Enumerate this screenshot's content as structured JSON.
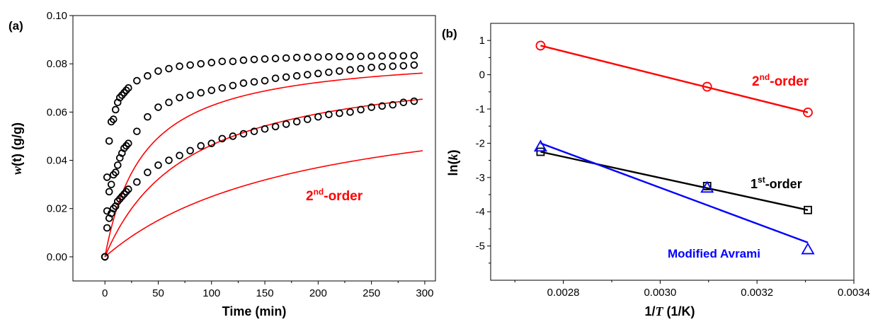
{
  "chart_data": [
    {
      "type": "scatter",
      "panel_label": "(a)",
      "xlabel": "Time (min)",
      "ylabel_italic": "w",
      "ylabel_rest": "(t) (g/g)",
      "xlim": [
        -30,
        310
      ],
      "ylim": [
        -0.01,
        0.1
      ],
      "xticks": [
        0,
        50,
        100,
        150,
        200,
        250,
        300
      ],
      "xtick_labels": [
        "0",
        "50",
        "100",
        "150",
        "200",
        "250",
        "300"
      ],
      "yticks": [
        0.0,
        0.02,
        0.04,
        0.06,
        0.08,
        0.1
      ],
      "ytick_labels": [
        "0.00",
        "0.02",
        "0.04",
        "0.06",
        "0.08",
        "0.10"
      ],
      "annotation": {
        "base": "2",
        "sup": "nd",
        "rest": "-order",
        "color": "#ff0000"
      },
      "series": [
        {
          "marker": "circle",
          "color": "#000000",
          "x": [
            0,
            2,
            4,
            6,
            8,
            10,
            12,
            14,
            16,
            18,
            20,
            22,
            30,
            40,
            50,
            60,
            70,
            80,
            90,
            100,
            110,
            120,
            130,
            140,
            150,
            160,
            170,
            180,
            190,
            200,
            210,
            220,
            230,
            240,
            250,
            260,
            270,
            280,
            290
          ],
          "y": [
            0,
            0.033,
            0.048,
            0.056,
            0.057,
            0.061,
            0.064,
            0.066,
            0.067,
            0.068,
            0.069,
            0.07,
            0.073,
            0.075,
            0.077,
            0.078,
            0.079,
            0.0795,
            0.08,
            0.0805,
            0.081,
            0.081,
            0.0815,
            0.0818,
            0.082,
            0.0822,
            0.0824,
            0.0826,
            0.0827,
            0.0828,
            0.0829,
            0.083,
            0.083,
            0.0831,
            0.0832,
            0.0832,
            0.0833,
            0.0833,
            0.0834
          ]
        },
        {
          "marker": "circle",
          "color": "#000000",
          "x": [
            0,
            2,
            4,
            6,
            8,
            10,
            12,
            14,
            16,
            18,
            20,
            22,
            30,
            40,
            50,
            60,
            70,
            80,
            90,
            100,
            110,
            120,
            130,
            140,
            150,
            160,
            170,
            180,
            190,
            200,
            210,
            220,
            230,
            240,
            250,
            260,
            270,
            280,
            290
          ],
          "y": [
            0,
            0.019,
            0.027,
            0.03,
            0.034,
            0.035,
            0.038,
            0.041,
            0.043,
            0.045,
            0.046,
            0.047,
            0.052,
            0.058,
            0.062,
            0.064,
            0.066,
            0.067,
            0.068,
            0.069,
            0.07,
            0.071,
            0.072,
            0.0725,
            0.073,
            0.074,
            0.0745,
            0.075,
            0.0755,
            0.076,
            0.0765,
            0.077,
            0.0775,
            0.078,
            0.0785,
            0.0788,
            0.079,
            0.0792,
            0.0795
          ]
        },
        {
          "marker": "circle",
          "color": "#000000",
          "x": [
            0,
            2,
            4,
            6,
            8,
            10,
            12,
            14,
            16,
            18,
            20,
            22,
            30,
            40,
            50,
            60,
            70,
            80,
            90,
            100,
            110,
            120,
            130,
            140,
            150,
            160,
            170,
            180,
            190,
            200,
            210,
            220,
            230,
            240,
            250,
            260,
            270,
            280,
            290
          ],
          "y": [
            0,
            0.012,
            0.016,
            0.018,
            0.02,
            0.021,
            0.023,
            0.024,
            0.025,
            0.026,
            0.027,
            0.028,
            0.031,
            0.035,
            0.038,
            0.04,
            0.042,
            0.044,
            0.046,
            0.047,
            0.049,
            0.05,
            0.051,
            0.052,
            0.053,
            0.054,
            0.055,
            0.056,
            0.057,
            0.058,
            0.059,
            0.0595,
            0.06,
            0.061,
            0.062,
            0.0625,
            0.063,
            0.064,
            0.0645
          ]
        }
      ],
      "fits": [
        {
          "color": "#ff0000",
          "qe": 0.0855,
          "k": 0.32,
          "tmax": 298
        },
        {
          "color": "#ff0000",
          "qe": 0.0825,
          "k": 0.155,
          "tmax": 298
        },
        {
          "color": "#ff0000",
          "qe": 0.0715,
          "k": 0.075,
          "tmax": 298
        }
      ]
    },
    {
      "type": "scatter",
      "panel_label": "(b)",
      "xlabel_pre": "1/",
      "xlabel_italic": "T",
      "xlabel_post": " (1/K)",
      "ylabel_pre": "ln(",
      "ylabel_italic": "k",
      "ylabel_post": ")",
      "xlim": [
        0.00265,
        0.0034
      ],
      "ylim": [
        -6,
        1.5
      ],
      "xticks": [
        0.0028,
        0.003,
        0.0032,
        0.0034
      ],
      "xtick_labels": [
        "0.0028",
        "0.0030",
        "0.0032",
        "0.0034"
      ],
      "yticks": [
        -5,
        -4,
        -3,
        -2,
        -1,
        0,
        1
      ],
      "ytick_labels": [
        "-5",
        "-4",
        "-3",
        "-2",
        "-1",
        "0",
        "1"
      ],
      "series": [
        {
          "name_base": "2",
          "name_sup": "nd",
          "name_rest": "-order",
          "color": "#ff0000",
          "marker": "circle",
          "x": [
            0.002753,
            0.003097,
            0.003305
          ],
          "y": [
            0.85,
            -0.35,
            -1.1
          ],
          "fit_x": [
            0.002753,
            0.003305
          ],
          "fit_y": [
            0.85,
            -1.1
          ]
        },
        {
          "name_base": "1",
          "name_sup": "st",
          "name_rest": "-order",
          "color": "#000000",
          "marker": "square",
          "x": [
            0.002753,
            0.003097,
            0.003305
          ],
          "y": [
            -2.25,
            -3.25,
            -3.95
          ],
          "fit_x": [
            0.002753,
            0.003305
          ],
          "fit_y": [
            -2.25,
            -3.95
          ]
        },
        {
          "name_base": "Modified Avrami",
          "name_sup": "",
          "name_rest": "",
          "color": "#0000ff",
          "marker": "triangle",
          "x": [
            0.002753,
            0.003097,
            0.003305
          ],
          "y": [
            -2.1,
            -3.3,
            -5.1
          ],
          "fit_x": [
            0.002753,
            0.003305
          ],
          "fit_y": [
            -2.0,
            -4.9
          ]
        }
      ]
    }
  ]
}
